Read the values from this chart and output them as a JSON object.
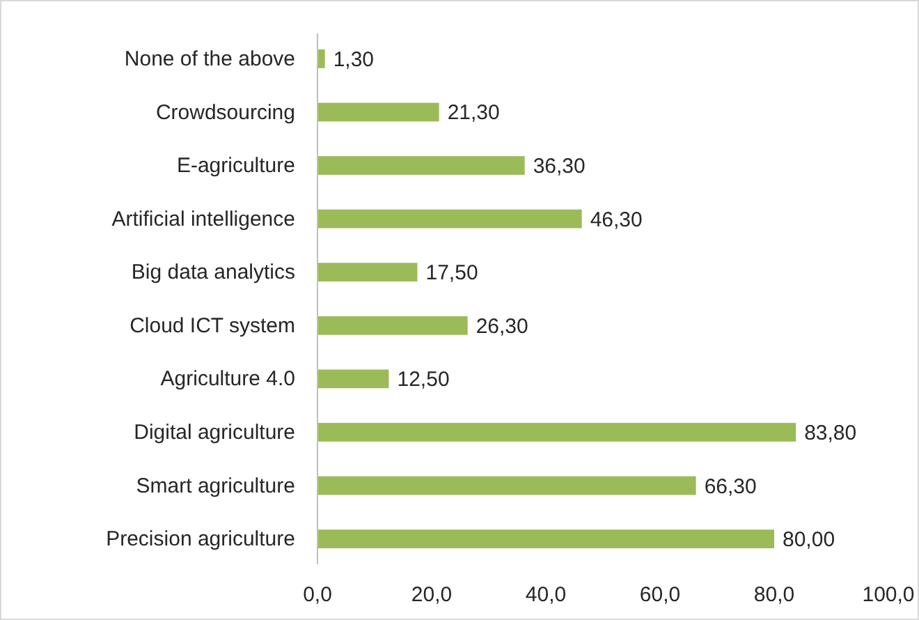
{
  "chart_data": {
    "type": "bar",
    "orientation": "horizontal",
    "categories": [
      "None of the above",
      "Crowdsourcing",
      "E-agriculture",
      "Artificial intelligence",
      "Big data analytics",
      "Cloud ICT system",
      "Agriculture 4.0",
      "Digital agriculture",
      "Smart agriculture",
      "Precision agriculture"
    ],
    "values": [
      1.3,
      21.3,
      36.3,
      46.3,
      17.5,
      26.3,
      12.5,
      83.8,
      66.3,
      80.0
    ],
    "value_labels": [
      "1,30",
      "21,30",
      "36,30",
      "46,30",
      "17,50",
      "26,30",
      "12,50",
      "83,80",
      "66,30",
      "80,00"
    ],
    "color": "#9bbb59",
    "xlim": [
      0,
      100
    ],
    "xticks": [
      {
        "value": 0,
        "label": "0,0"
      },
      {
        "value": 20,
        "label": "20,0"
      },
      {
        "value": 40,
        "label": "40,0"
      },
      {
        "value": 60,
        "label": "60,0"
      },
      {
        "value": 80,
        "label": "80,0"
      },
      {
        "value": 100,
        "label": "100,0"
      }
    ],
    "grid": false
  }
}
